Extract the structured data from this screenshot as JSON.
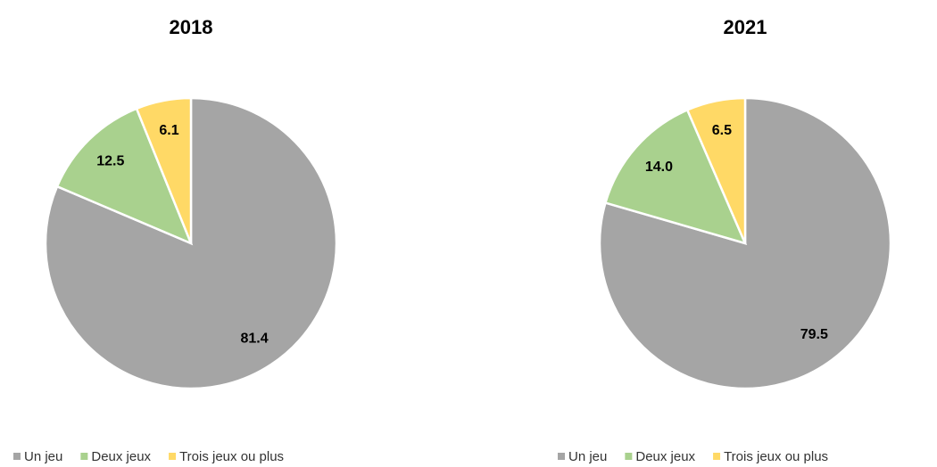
{
  "chart_data": [
    {
      "type": "pie",
      "title": "2018",
      "categories": [
        "Un jeu",
        "Deux jeux",
        "Trois jeux ou plus"
      ],
      "values": [
        81.4,
        12.5,
        6.1
      ],
      "value_labels": [
        "81.4",
        "12.5",
        "6.1"
      ],
      "colors": [
        "#a5a5a5",
        "#a9d18e",
        "#ffd966"
      ]
    },
    {
      "type": "pie",
      "title": "2021",
      "categories": [
        "Un jeu",
        "Deux jeux",
        "Trois jeux ou plus"
      ],
      "values": [
        79.5,
        14.0,
        6.5
      ],
      "value_labels": [
        "79.5",
        "14.0",
        "6.5"
      ],
      "colors": [
        "#a5a5a5",
        "#a9d18e",
        "#ffd966"
      ]
    }
  ]
}
